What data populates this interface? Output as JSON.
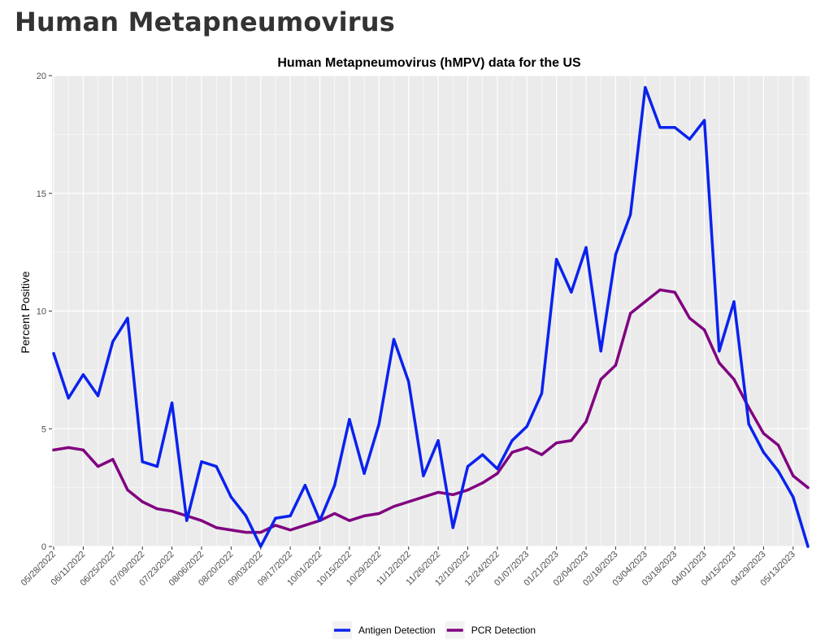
{
  "page": {
    "heading": "Human Metapneumovirus"
  },
  "colors": {
    "antigen": "#0a22ee",
    "pcr": "#800080",
    "panel": "#ebebeb",
    "grid": "#ffffff"
  },
  "chart_data": {
    "type": "line",
    "title": "Human Metapneumovirus (hMPV) data for the US",
    "xlabel": "",
    "ylabel": "Percent Positive",
    "ylim": [
      0,
      20
    ],
    "yticks": [
      0,
      5,
      10,
      15,
      20
    ],
    "grid": true,
    "legend_position": "bottom",
    "x": [
      "05/28/2022",
      "06/04/2022",
      "06/11/2022",
      "06/18/2022",
      "06/25/2022",
      "07/02/2022",
      "07/09/2022",
      "07/16/2022",
      "07/23/2022",
      "07/30/2022",
      "08/06/2022",
      "08/13/2022",
      "08/20/2022",
      "08/27/2022",
      "09/03/2022",
      "09/10/2022",
      "09/17/2022",
      "09/24/2022",
      "10/01/2022",
      "10/08/2022",
      "10/15/2022",
      "10/22/2022",
      "10/29/2022",
      "11/05/2022",
      "11/12/2022",
      "11/19/2022",
      "11/26/2022",
      "12/03/2022",
      "12/10/2022",
      "12/17/2022",
      "12/24/2022",
      "12/31/2022",
      "01/07/2023",
      "01/14/2023",
      "01/21/2023",
      "01/28/2023",
      "02/04/2023",
      "02/11/2023",
      "02/18/2023",
      "02/25/2023",
      "03/04/2023",
      "03/11/2023",
      "03/18/2023",
      "03/25/2023",
      "04/01/2023",
      "04/08/2023",
      "04/15/2023",
      "04/22/2023",
      "04/29/2023",
      "05/06/2023",
      "05/13/2023",
      "05/20/2023"
    ],
    "x_tick_labels": [
      "05/28/2022",
      "06/11/2022",
      "06/25/2022",
      "07/09/2022",
      "07/23/2022",
      "08/06/2022",
      "08/20/2022",
      "09/03/2022",
      "09/17/2022",
      "10/01/2022",
      "10/15/2022",
      "10/29/2022",
      "11/12/2022",
      "11/26/2022",
      "12/10/2022",
      "12/24/2022",
      "01/07/2023",
      "01/21/2023",
      "02/04/2023",
      "02/18/2023",
      "03/04/2023",
      "03/18/2023",
      "04/01/2023",
      "04/15/2023",
      "04/29/2023",
      "05/13/2023"
    ],
    "series": [
      {
        "name": "Antigen Detection",
        "color": "#0a22ee",
        "values": [
          8.2,
          6.3,
          7.3,
          6.4,
          8.7,
          9.7,
          3.6,
          3.4,
          6.1,
          1.1,
          3.6,
          3.4,
          2.1,
          1.3,
          0.0,
          1.2,
          1.3,
          2.6,
          1.1,
          2.6,
          5.4,
          3.1,
          5.2,
          8.8,
          7.0,
          3.0,
          4.5,
          0.8,
          3.4,
          3.9,
          3.3,
          4.5,
          5.1,
          6.5,
          12.2,
          10.8,
          12.7,
          8.3,
          12.4,
          14.1,
          19.5,
          17.8,
          17.8,
          17.3,
          18.1,
          8.3,
          10.4,
          5.2,
          4.0,
          3.2,
          2.1,
          0.0
        ]
      },
      {
        "name": "PCR Detection",
        "color": "#800080",
        "values": [
          4.1,
          4.2,
          4.1,
          3.4,
          3.7,
          2.4,
          1.9,
          1.6,
          1.5,
          1.3,
          1.1,
          0.8,
          0.7,
          0.6,
          0.6,
          0.9,
          0.7,
          0.9,
          1.1,
          1.4,
          1.1,
          1.3,
          1.4,
          1.7,
          1.9,
          2.1,
          2.3,
          2.2,
          2.4,
          2.7,
          3.1,
          4.0,
          4.2,
          3.9,
          4.4,
          4.5,
          5.3,
          7.1,
          7.7,
          9.9,
          10.4,
          10.9,
          10.8,
          9.7,
          9.2,
          7.8,
          7.1,
          5.9,
          4.8,
          4.3,
          3.0,
          2.5
        ]
      }
    ]
  }
}
